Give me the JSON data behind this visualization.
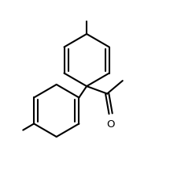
{
  "bg_color": "#ffffff",
  "line_color": "#000000",
  "line_width": 1.5,
  "fig_width": 2.16,
  "fig_height": 2.48,
  "dpi": 100,
  "xlim": [
    0,
    10
  ],
  "ylim": [
    0,
    11.5
  ]
}
